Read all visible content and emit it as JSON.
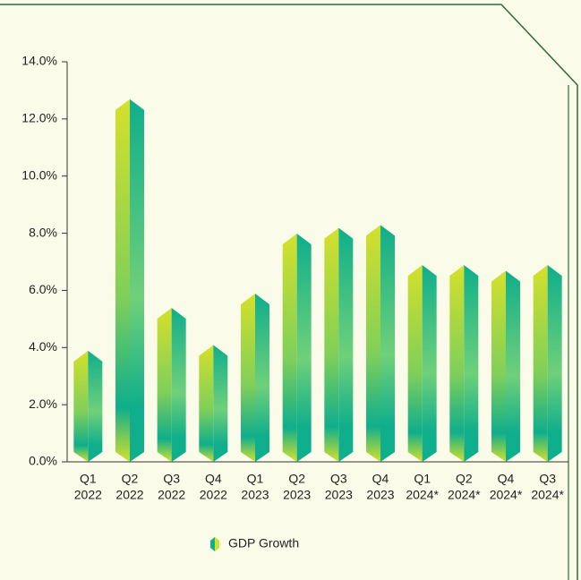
{
  "chart_data": {
    "type": "bar",
    "categories": [
      [
        "Q1",
        "2022"
      ],
      [
        "Q2",
        "2022"
      ],
      [
        "Q3",
        "2022"
      ],
      [
        "Q4",
        "2022"
      ],
      [
        "Q1",
        "2023"
      ],
      [
        "Q2",
        "2023"
      ],
      [
        "Q3",
        "2023"
      ],
      [
        "Q4",
        "2023"
      ],
      [
        "Q1",
        "2024*"
      ],
      [
        "Q2",
        "2024*"
      ],
      [
        "Q4",
        "2024*"
      ],
      [
        "Q3",
        "2024*"
      ]
    ],
    "series": [
      {
        "name": "GDP Growth",
        "colors": [
          "#d5e02a",
          "#0fae8c"
        ],
        "values": [
          3.7,
          12.5,
          5.2,
          3.9,
          5.7,
          7.8,
          8.0,
          8.1,
          6.7,
          6.7,
          6.5,
          6.7
        ]
      }
    ],
    "ylim": [
      0,
      14
    ],
    "yticks": [
      {
        "value": 0,
        "label": "0.0%"
      },
      {
        "value": 2,
        "label": "2.0%"
      },
      {
        "value": 4,
        "label": "4.0%"
      },
      {
        "value": 6,
        "label": "6.0%"
      },
      {
        "value": 8,
        "label": "8.0%"
      },
      {
        "value": 10,
        "label": "10.0%"
      },
      {
        "value": 12,
        "label": "12.0%"
      },
      {
        "value": 14,
        "label": "14.0%"
      }
    ],
    "legend": "bottom"
  }
}
